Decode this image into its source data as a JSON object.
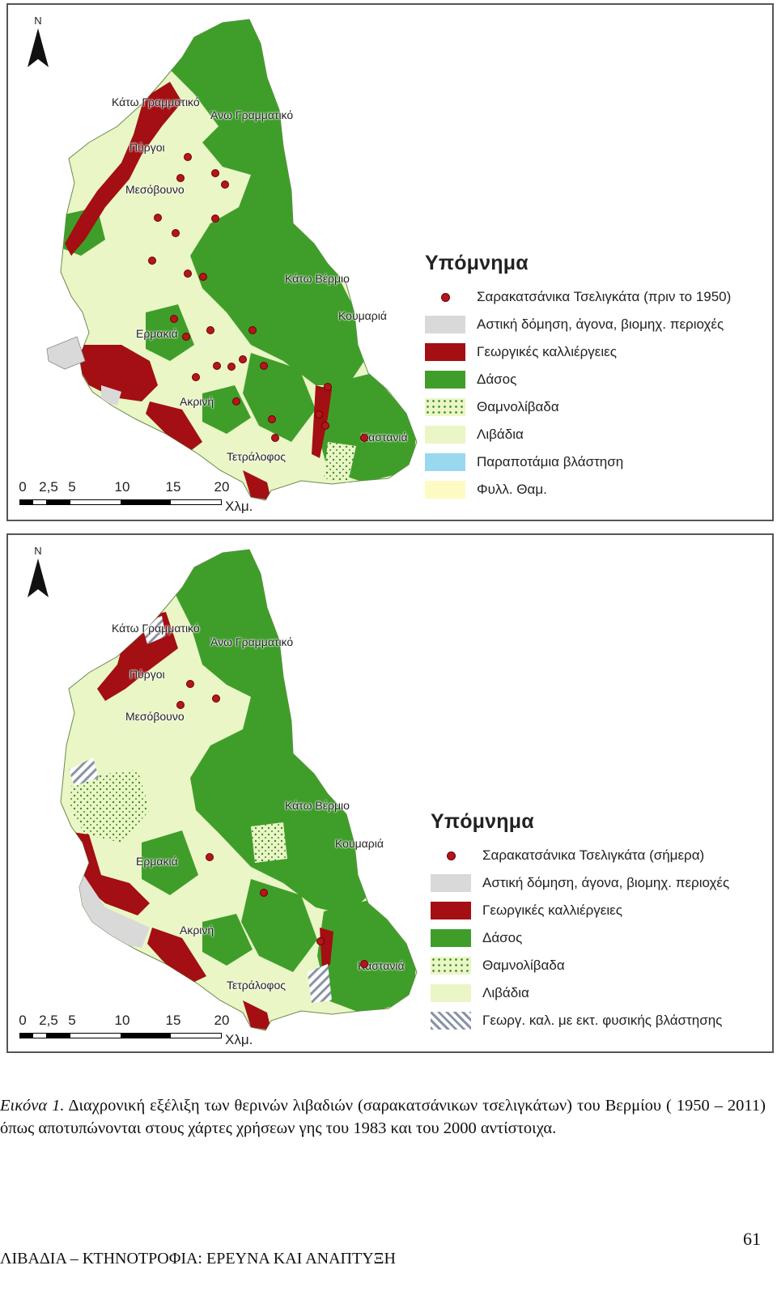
{
  "north_label": "N",
  "colors": {
    "urban": "#d9d9d9",
    "agri": "#a30f12",
    "forest": "#3f9e2a",
    "shrub": "#d6edc4",
    "meadow": "#eaf6c5",
    "riparian": "#99d8ee",
    "foliage": "#fdfbc3",
    "dot": "#b3161c"
  },
  "maps": [
    {
      "id": "map-1950",
      "towns": [
        {
          "id": "kato-grammatiko",
          "label": "Κάτω Γραμματικό"
        },
        {
          "id": "ano-grammatiko",
          "label": "Άνω Γραμματικό"
        },
        {
          "id": "pyrgoi",
          "label": "Πύργοι"
        },
        {
          "id": "mesovouno",
          "label": "Μεσόβουνο"
        },
        {
          "id": "kato-vermio",
          "label": "Κάτω Βέρμιο"
        },
        {
          "id": "koumaria",
          "label": "Κουμαριά"
        },
        {
          "id": "ermakia",
          "label": "Ερμακιά"
        },
        {
          "id": "akrini",
          "label": "Ακρινή"
        },
        {
          "id": "kastania",
          "label": "Καστανιά"
        },
        {
          "id": "tetralofos",
          "label": "Τετράλοφος"
        }
      ],
      "legend": {
        "title": "Υπόμνημα",
        "items": [
          {
            "kind": "dot",
            "label": "Σαρακατσάνικα Τσελιγκάτα (πριν το 1950)"
          },
          {
            "kind": "urban",
            "label": "Αστική δόμηση, άγονα, βιομηχ. περιοχές"
          },
          {
            "kind": "agri",
            "label": "Γεωργικές καλλιέργειες"
          },
          {
            "kind": "forest",
            "label": "Δάσος"
          },
          {
            "kind": "shrub",
            "label": "Θαμνολίβαδα"
          },
          {
            "kind": "meadow",
            "label": "Λιβάδια"
          },
          {
            "kind": "riparian",
            "label": "Παραποτάμια βλάστηση"
          },
          {
            "kind": "foliage",
            "label": "Φυλλ. Θαμ."
          }
        ]
      },
      "scale": {
        "ticks": [
          "0",
          "2,5",
          "5",
          "10",
          "15",
          "20"
        ],
        "unit": "Χλμ."
      }
    },
    {
      "id": "map-2000",
      "towns": [
        {
          "id": "kato-grammatiko",
          "label": "Κάτω Γραμματικό"
        },
        {
          "id": "ano-grammatiko",
          "label": "Άνω Γραμματικό"
        },
        {
          "id": "pyrgoi",
          "label": "Πύργοι"
        },
        {
          "id": "mesovouno",
          "label": "Μεσόβουνο"
        },
        {
          "id": "kato-vermio",
          "label": "Κάτω Βέρμιο"
        },
        {
          "id": "koumaria",
          "label": "Κουμαριά"
        },
        {
          "id": "ermakia",
          "label": "Ερμακιά"
        },
        {
          "id": "akrini",
          "label": "Ακρινή"
        },
        {
          "id": "kastania",
          "label": "Καστανιά"
        },
        {
          "id": "tetralofos",
          "label": "Τετράλοφος"
        }
      ],
      "legend": {
        "title": "Υπόμνημα",
        "items": [
          {
            "kind": "dot",
            "label": "Σαρακατσάνικα Τσελιγκάτα (σήμερα)"
          },
          {
            "kind": "urban",
            "label": "Αστική δόμηση, άγονα, βιομηχ. περιοχές"
          },
          {
            "kind": "agri",
            "label": "Γεωργικές καλλιέργειες"
          },
          {
            "kind": "forest",
            "label": "Δάσος"
          },
          {
            "kind": "shrub",
            "label": "Θαμνολίβαδα"
          },
          {
            "kind": "meadow",
            "label": "Λιβάδια"
          },
          {
            "kind": "hatch",
            "label": "Γεωργ. καλ. με εκτ. φυσικής βλάστησης"
          }
        ]
      },
      "scale": {
        "ticks": [
          "0",
          "2,5",
          "5",
          "10",
          "15",
          "20"
        ],
        "unit": "Χλμ."
      }
    }
  ],
  "caption": {
    "figure_label": "Εικόνα 1.",
    "text": " Διαχρονική εξέλιξη των θερινών λιβαδιών (σαρακατσάνικων τσελιγκάτων) του Βερμίου ( 1950 – 2011) όπως αποτυπώνονται στους χάρτες χρήσεων γης του 1983 και του 2000 αντίστοιχα."
  },
  "footer": "ΛΙΒΑΔΙΑ – ΚΤΗΝΟΤΡΟΦΙΑ: ΕΡΕΥΝΑ ΚΑΙ ΑΝΑΠΤΥΞΗ",
  "page_number": "61"
}
